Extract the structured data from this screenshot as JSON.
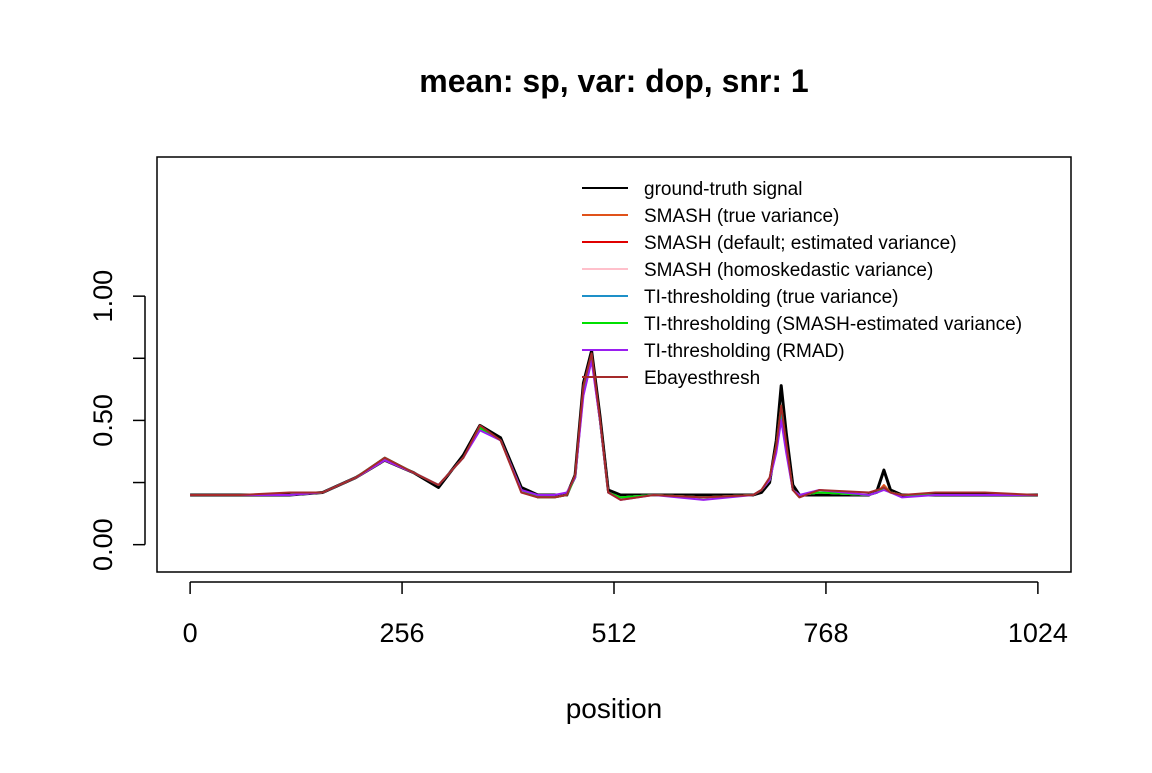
{
  "chart_data": {
    "type": "line",
    "title": "mean: sp, var: dop, snr: 1",
    "xlabel": "position",
    "ylabel": "",
    "xlim": [
      -40,
      1064
    ],
    "ylim": [
      -0.11,
      1.56
    ],
    "x_ticks": [
      0,
      256,
      512,
      768,
      1024
    ],
    "x_tick_labels": [
      "0",
      "256",
      "512",
      "768",
      "1024"
    ],
    "y_ticks": [
      0.0,
      0.25,
      0.5,
      0.75,
      1.0
    ],
    "y_tick_labels": [
      "0.00",
      "0.50",
      "1.00"
    ],
    "y_tick_labeled": [
      true,
      false,
      true,
      false,
      true
    ],
    "grid": false,
    "legend_position": "top-right",
    "series": [
      {
        "name": "ground-truth signal",
        "color": "#000000",
        "x": [
          0,
          60,
          120,
          160,
          200,
          235,
          270,
          300,
          330,
          350,
          375,
          400,
          420,
          440,
          455,
          465,
          475,
          485,
          495,
          505,
          520,
          560,
          620,
          680,
          690,
          700,
          708,
          714,
          720,
          728,
          736,
          760,
          820,
          830,
          838,
          846,
          860,
          900,
          960,
          1024
        ],
        "y": [
          0.2,
          0.2,
          0.2,
          0.21,
          0.27,
          0.34,
          0.29,
          0.23,
          0.36,
          0.48,
          0.43,
          0.23,
          0.2,
          0.2,
          0.2,
          0.28,
          0.65,
          0.78,
          0.52,
          0.22,
          0.2,
          0.2,
          0.2,
          0.2,
          0.21,
          0.25,
          0.42,
          0.64,
          0.45,
          0.24,
          0.2,
          0.2,
          0.2,
          0.22,
          0.3,
          0.22,
          0.2,
          0.2,
          0.2,
          0.2
        ]
      },
      {
        "name": "SMASH (true variance)",
        "color": "#E0521A",
        "x": [
          0,
          60,
          120,
          160,
          200,
          235,
          270,
          300,
          330,
          350,
          375,
          400,
          420,
          440,
          455,
          465,
          475,
          485,
          495,
          505,
          520,
          560,
          620,
          680,
          690,
          700,
          708,
          714,
          720,
          728,
          736,
          760,
          820,
          830,
          838,
          846,
          860,
          900,
          960,
          1024
        ],
        "y": [
          0.2,
          0.2,
          0.2,
          0.21,
          0.27,
          0.34,
          0.29,
          0.24,
          0.35,
          0.47,
          0.42,
          0.22,
          0.19,
          0.19,
          0.2,
          0.27,
          0.62,
          0.75,
          0.5,
          0.21,
          0.19,
          0.2,
          0.19,
          0.2,
          0.22,
          0.26,
          0.39,
          0.54,
          0.4,
          0.22,
          0.2,
          0.21,
          0.2,
          0.21,
          0.24,
          0.21,
          0.2,
          0.2,
          0.2,
          0.2
        ]
      },
      {
        "name": "SMASH (default; estimated variance)",
        "color": "#E00000",
        "x": [
          0,
          60,
          120,
          160,
          200,
          235,
          270,
          300,
          330,
          350,
          375,
          400,
          420,
          440,
          455,
          465,
          475,
          485,
          495,
          505,
          520,
          560,
          620,
          680,
          690,
          700,
          708,
          714,
          720,
          728,
          736,
          760,
          820,
          830,
          838,
          846,
          860,
          900,
          960,
          1024
        ],
        "y": [
          0.2,
          0.2,
          0.2,
          0.21,
          0.27,
          0.34,
          0.29,
          0.24,
          0.35,
          0.47,
          0.42,
          0.22,
          0.19,
          0.19,
          0.2,
          0.27,
          0.61,
          0.75,
          0.5,
          0.21,
          0.19,
          0.2,
          0.19,
          0.2,
          0.22,
          0.26,
          0.38,
          0.52,
          0.39,
          0.22,
          0.2,
          0.21,
          0.2,
          0.21,
          0.23,
          0.21,
          0.2,
          0.2,
          0.2,
          0.2
        ]
      },
      {
        "name": "SMASH (homoskedastic variance)",
        "color": "#FFC0CB",
        "x": [
          0,
          60,
          120,
          160,
          200,
          235,
          270,
          300,
          330,
          350,
          375,
          400,
          420,
          440,
          455,
          465,
          475,
          485,
          495,
          505,
          520,
          560,
          620,
          680,
          690,
          700,
          708,
          714,
          720,
          728,
          736,
          760,
          820,
          830,
          838,
          846,
          860,
          900,
          960,
          1024
        ],
        "y": [
          0.2,
          0.2,
          0.2,
          0.21,
          0.27,
          0.34,
          0.29,
          0.24,
          0.35,
          0.47,
          0.42,
          0.22,
          0.19,
          0.19,
          0.2,
          0.27,
          0.6,
          0.74,
          0.5,
          0.21,
          0.19,
          0.2,
          0.19,
          0.2,
          0.22,
          0.26,
          0.38,
          0.5,
          0.38,
          0.22,
          0.2,
          0.21,
          0.2,
          0.21,
          0.23,
          0.21,
          0.2,
          0.2,
          0.2,
          0.2
        ]
      },
      {
        "name": "TI-thresholding (true variance)",
        "color": "#1E90C8",
        "x": [
          0,
          60,
          120,
          160,
          200,
          235,
          270,
          300,
          330,
          350,
          375,
          400,
          420,
          440,
          455,
          465,
          475,
          485,
          495,
          505,
          520,
          560,
          620,
          680,
          690,
          700,
          708,
          714,
          720,
          728,
          736,
          760,
          820,
          830,
          838,
          846,
          860,
          900,
          960,
          1024
        ],
        "y": [
          0.2,
          0.2,
          0.2,
          0.21,
          0.27,
          0.35,
          0.29,
          0.24,
          0.35,
          0.47,
          0.42,
          0.22,
          0.19,
          0.19,
          0.2,
          0.27,
          0.62,
          0.76,
          0.5,
          0.21,
          0.19,
          0.2,
          0.19,
          0.2,
          0.22,
          0.26,
          0.39,
          0.53,
          0.39,
          0.22,
          0.2,
          0.21,
          0.2,
          0.21,
          0.23,
          0.21,
          0.2,
          0.2,
          0.2,
          0.2
        ]
      },
      {
        "name": "TI-thresholding (SMASH-estimated variance)",
        "color": "#00E000",
        "x": [
          0,
          60,
          120,
          160,
          200,
          235,
          270,
          300,
          330,
          350,
          375,
          400,
          420,
          440,
          455,
          465,
          475,
          485,
          495,
          505,
          520,
          560,
          620,
          680,
          690,
          700,
          708,
          714,
          720,
          728,
          736,
          760,
          820,
          830,
          838,
          846,
          860,
          900,
          960,
          1024
        ],
        "y": [
          0.2,
          0.2,
          0.2,
          0.21,
          0.27,
          0.35,
          0.29,
          0.24,
          0.35,
          0.47,
          0.42,
          0.22,
          0.19,
          0.19,
          0.2,
          0.27,
          0.62,
          0.76,
          0.5,
          0.21,
          0.19,
          0.2,
          0.19,
          0.2,
          0.22,
          0.26,
          0.4,
          0.56,
          0.4,
          0.22,
          0.2,
          0.21,
          0.2,
          0.21,
          0.23,
          0.21,
          0.2,
          0.2,
          0.2,
          0.2
        ]
      },
      {
        "name": "TI-thresholding (RMAD)",
        "color": "#9A1EF0",
        "x": [
          0,
          60,
          120,
          160,
          200,
          235,
          270,
          300,
          330,
          350,
          375,
          400,
          420,
          440,
          455,
          465,
          475,
          485,
          495,
          505,
          520,
          560,
          620,
          680,
          690,
          700,
          708,
          714,
          720,
          728,
          736,
          760,
          820,
          830,
          838,
          846,
          860,
          900,
          960,
          1024
        ],
        "y": [
          0.2,
          0.2,
          0.2,
          0.21,
          0.27,
          0.34,
          0.29,
          0.24,
          0.35,
          0.46,
          0.42,
          0.22,
          0.2,
          0.2,
          0.21,
          0.27,
          0.6,
          0.74,
          0.5,
          0.21,
          0.18,
          0.2,
          0.18,
          0.2,
          0.22,
          0.26,
          0.37,
          0.5,
          0.37,
          0.22,
          0.2,
          0.22,
          0.2,
          0.21,
          0.22,
          0.21,
          0.19,
          0.2,
          0.2,
          0.2
        ]
      },
      {
        "name": "Ebayesthresh",
        "color": "#A52A2A",
        "x": [
          0,
          60,
          120,
          160,
          200,
          235,
          270,
          300,
          330,
          350,
          375,
          400,
          420,
          440,
          455,
          465,
          475,
          485,
          495,
          505,
          520,
          560,
          620,
          680,
          690,
          700,
          708,
          714,
          720,
          728,
          736,
          760,
          820,
          830,
          838,
          846,
          860,
          900,
          960,
          1024
        ],
        "y": [
          0.2,
          0.2,
          0.21,
          0.21,
          0.27,
          0.35,
          0.29,
          0.24,
          0.35,
          0.48,
          0.42,
          0.21,
          0.19,
          0.19,
          0.2,
          0.28,
          0.64,
          0.77,
          0.51,
          0.21,
          0.18,
          0.2,
          0.19,
          0.2,
          0.22,
          0.27,
          0.4,
          0.56,
          0.41,
          0.22,
          0.19,
          0.22,
          0.21,
          0.22,
          0.23,
          0.21,
          0.2,
          0.21,
          0.21,
          0.2
        ]
      }
    ]
  }
}
